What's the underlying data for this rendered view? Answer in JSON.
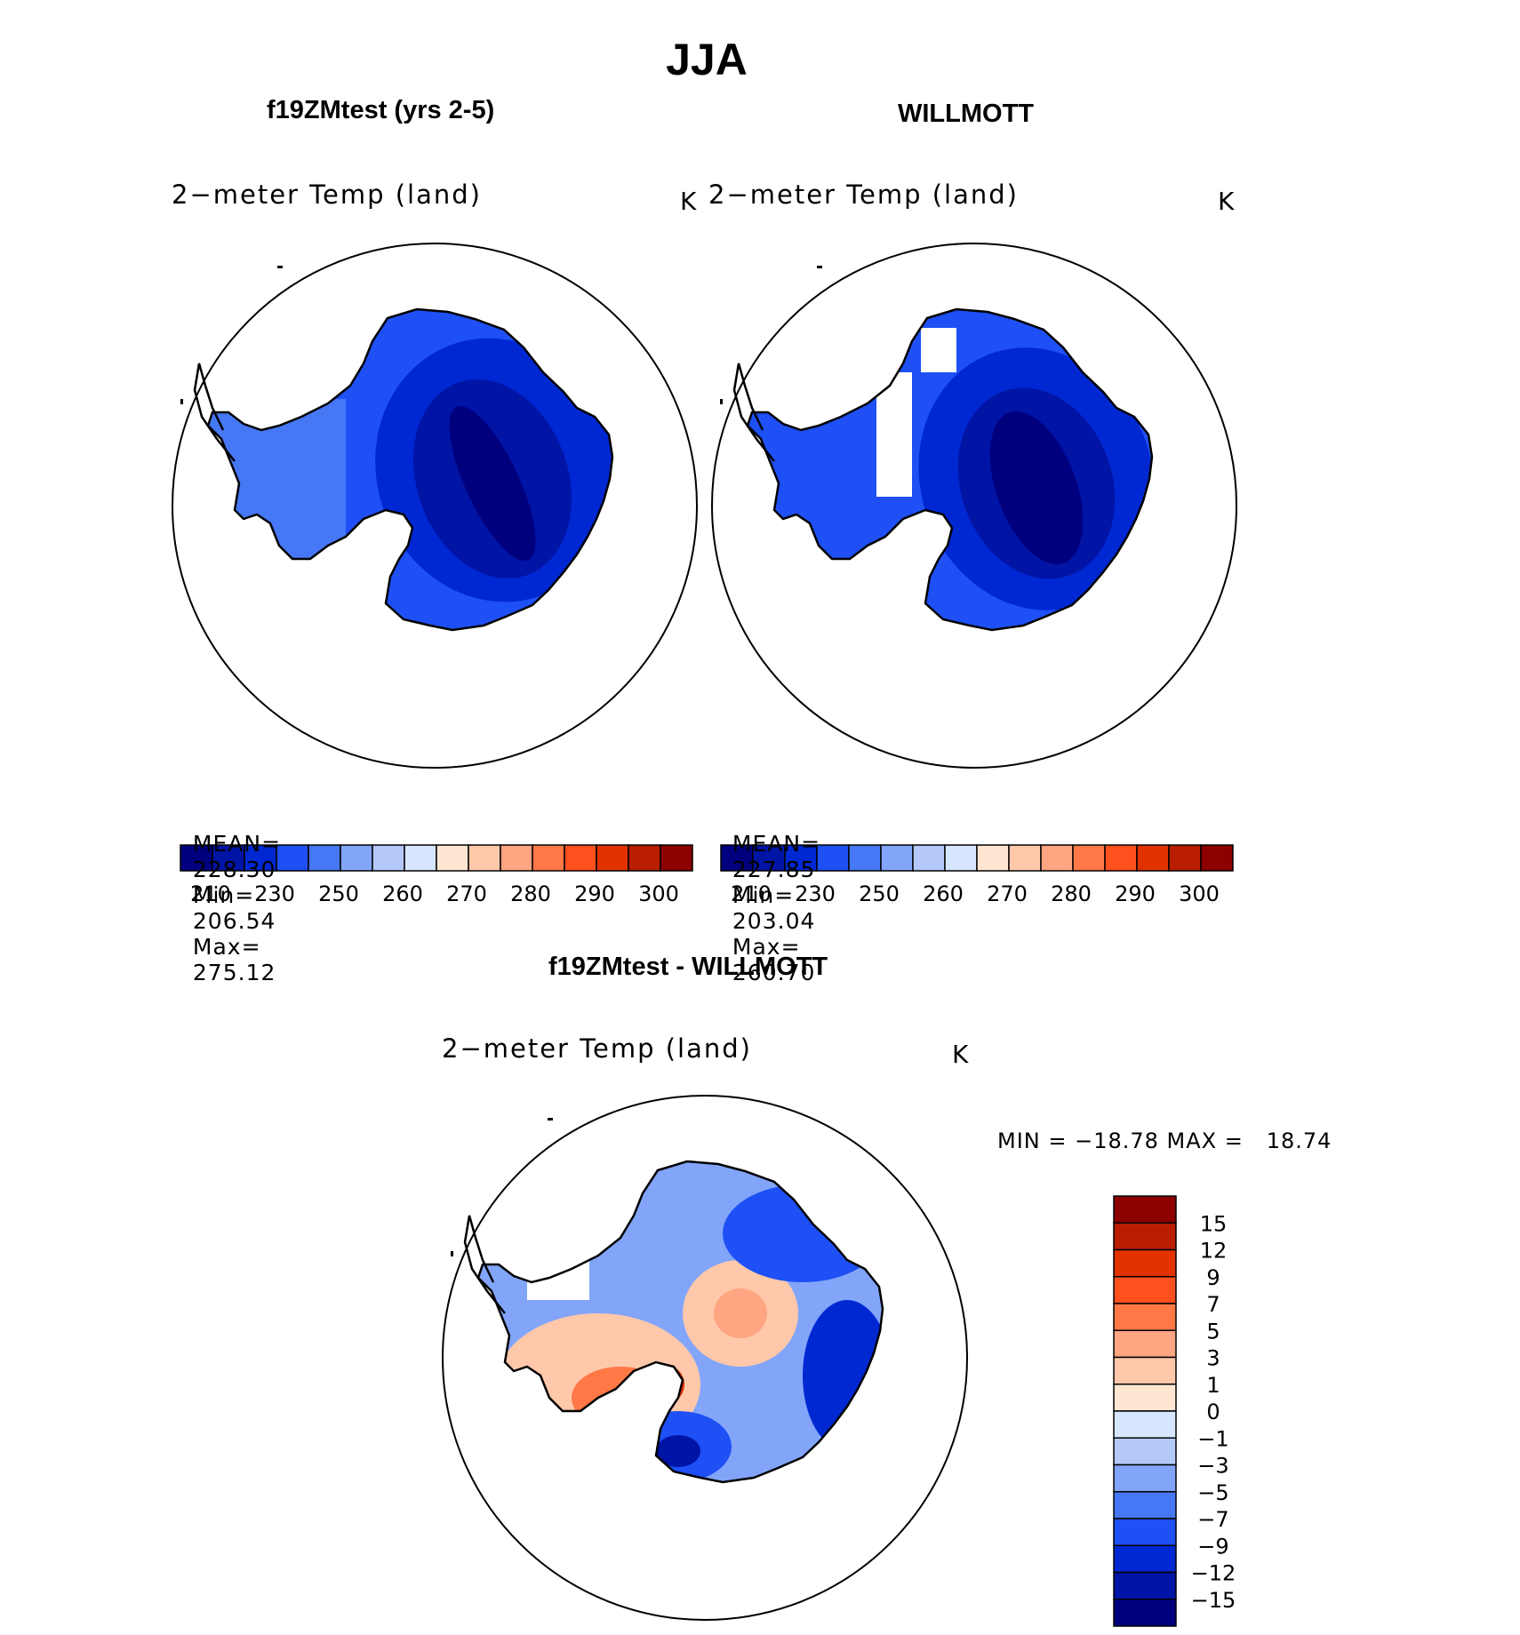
{
  "figure": {
    "season_title": "JJA"
  },
  "panels": [
    {
      "case_title": "f19ZMtest (yrs 2-5)",
      "variable": "2−meter Temp (land)",
      "units": "K",
      "stats": {
        "mean_label": "MEAN=",
        "mean": "228.30",
        "min_label": "Min=",
        "min": "206.54",
        "max_label": "Max=",
        "max": "275.12"
      }
    },
    {
      "case_title": "WILLMOTT",
      "variable": "2−meter Temp (land)",
      "units": "K",
      "stats": {
        "mean_label": "MEAN=",
        "mean": "227.85",
        "min_label": "Min=",
        "min": "203.04",
        "max_label": "Max=",
        "max": "260.70"
      }
    }
  ],
  "abs_colorbar": {
    "tick_labels": [
      "210",
      "230",
      "250",
      "260",
      "270",
      "280",
      "290",
      "300"
    ],
    "colors": [
      "#00007f",
      "#0014a6",
      "#0028d2",
      "#1e50f5",
      "#4678f5",
      "#82a5fa",
      "#b4c8fa",
      "#d7e6ff",
      "#ffe6d2",
      "#ffc8aa",
      "#ffa582",
      "#ff7846",
      "#ff501e",
      "#e13200",
      "#b91e00",
      "#8c0000"
    ]
  },
  "diff_panel": {
    "title": "f19ZMtest - WILLMOTT",
    "variable": "2−meter Temp (land)",
    "units": "K",
    "range_text": "MIN = −18.78 MAX =   18.74",
    "colorbar": {
      "tick_labels": [
        "15",
        "12",
        "9",
        "7",
        "5",
        "3",
        "1",
        "0",
        "−1",
        "−3",
        "−5",
        "−7",
        "−9",
        "−12",
        "−15"
      ],
      "colors": [
        "#8c0000",
        "#b91e00",
        "#e13200",
        "#ff501e",
        "#ff7846",
        "#ffa582",
        "#ffc8aa",
        "#ffe6d2",
        "#d7e6ff",
        "#b4c8fa",
        "#82a5fa",
        "#4678f5",
        "#1e50f5",
        "#0028d2",
        "#0014a6",
        "#00007f"
      ]
    }
  },
  "map_colors": {
    "deep": "#00007f",
    "dark": "#0014a6",
    "mid": "#0028d2",
    "base": "#1e50f5",
    "light": "#4678f5",
    "pale": "#82a5fa",
    "icy": "#d7e6ff",
    "warm1": "#ffe6d2",
    "warm2": "#ffc8aa",
    "warm3": "#ffa582",
    "warm4": "#ff7846",
    "warm5": "#ff501e",
    "warm6": "#e13200"
  }
}
